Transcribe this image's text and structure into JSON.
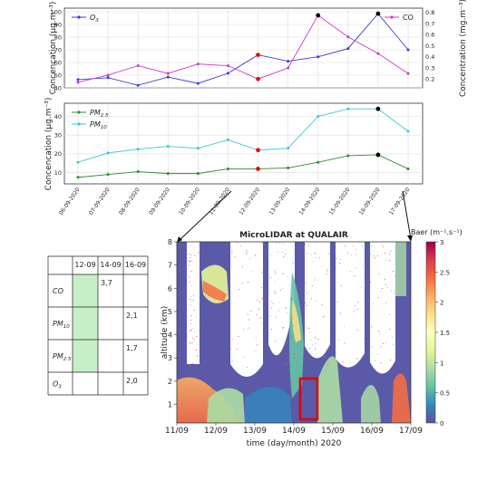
{
  "chart_data": [
    {
      "type": "line",
      "categories": [
        "06-09-2020",
        "07-09-2020",
        "08-09-2020",
        "09-09-2020",
        "10-09-2020",
        "11-09-2020",
        "12-09-2020",
        "13-09-2020",
        "14-09-2020",
        "15-09-2020",
        "16-09-2020",
        "17-09-2020"
      ],
      "series": [
        {
          "name": "O3",
          "axis": "left",
          "color": "#3a3adf",
          "values": [
            46.5,
            48.0,
            42.0,
            48.5,
            43.5,
            51.5,
            66.0,
            61.0,
            64.5,
            71.0,
            98.5,
            70.0
          ]
        },
        {
          "name": "CO",
          "axis": "right",
          "color": "#c83cc8",
          "values": [
            0.17,
            0.235,
            0.32,
            0.25,
            0.335,
            0.32,
            0.2,
            0.3,
            0.775,
            0.58,
            0.43,
            0.25
          ]
        }
      ],
      "highlight": {
        "red": [
          6
        ],
        "black": [
          8,
          10
        ]
      },
      "ylabel": "Concencation (µg.m⁻³)",
      "y2label": "Concentration (mg.m⁻³)",
      "ylim": [
        40,
        100
      ],
      "yticks": [
        40,
        50,
        60,
        70,
        80,
        90,
        100
      ],
      "y2lim": [
        0.12,
        0.84
      ],
      "y2ticks": [
        0.2,
        0.3,
        0.4,
        0.5,
        0.6,
        0.7,
        0.8
      ],
      "grid": true,
      "legend": [
        {
          "name": "O3",
          "position": "top-left"
        },
        {
          "name": "CO",
          "position": "top-right"
        }
      ]
    },
    {
      "type": "line",
      "categories": [
        "06-09-2020",
        "07-09-2020",
        "08-09-2020",
        "09-09-2020",
        "10-09-2020",
        "11-09-2020",
        "12-09-2020",
        "13-09-2020",
        "14-09-2020",
        "15-09-2020",
        "16-09-2020",
        "17-09-2020"
      ],
      "series": [
        {
          "name": "PM2.5",
          "color": "#2e8b2e",
          "values": [
            7.5,
            9.0,
            10.5,
            9.5,
            9.5,
            12.0,
            12.0,
            12.5,
            15.5,
            19.0,
            19.5,
            12.0
          ]
        },
        {
          "name": "PM10",
          "color": "#3cc8d2",
          "values": [
            15.5,
            20.5,
            22.5,
            24.0,
            23.0,
            27.5,
            22.0,
            23.0,
            40.0,
            44.0,
            44.0,
            32.0
          ]
        }
      ],
      "highlight": {
        "red": [
          6
        ],
        "black": [
          10
        ]
      },
      "ylabel": "Concencation (µg.m⁻³)",
      "ylim": [
        4,
        47
      ],
      "yticks": [
        10,
        20,
        30,
        40
      ],
      "grid": true,
      "legend": [
        {
          "name": "PM2.5",
          "position": "top-left"
        },
        {
          "name": "PM10",
          "position": "top-left"
        }
      ]
    },
    {
      "type": "heatmap",
      "title": "MicroLIDAR at QUALAIR",
      "xlabel": "time (day/month) 2020",
      "ylabel": "altitude (km)",
      "colorbar_label": "Baer (m⁻¹.s⁻¹)",
      "xticks": [
        "11/09",
        "12/09",
        "13/09",
        "14/09",
        "15/09",
        "16/09",
        "17/09"
      ],
      "yticks": [
        1,
        2,
        3,
        4,
        5,
        6,
        7,
        8
      ],
      "ylim": [
        0.2,
        8
      ],
      "colorbar_ticks": [
        0,
        0.5,
        1,
        1.5,
        2,
        2.5,
        3
      ],
      "colorbar_lim": [
        0,
        3
      ],
      "colormap": "Spectral_r",
      "highlight_box": {
        "x_day_range": [
          "14/09 ~06h",
          "14/09 ~18h"
        ],
        "altitude_km": [
          0.2,
          1.7
        ],
        "color": "#e00000"
      }
    },
    {
      "type": "table",
      "columns": [
        "",
        "12-09",
        "14-09",
        "16-09"
      ],
      "rows": [
        {
          "label": "CO",
          "values": [
            "",
            "3,7",
            ""
          ]
        },
        {
          "label": "PM10",
          "values": [
            "",
            "",
            "2,1"
          ]
        },
        {
          "label": "PM2.5",
          "values": [
            "",
            "",
            "1,7"
          ]
        },
        {
          "label": "O3",
          "values": [
            "",
            "",
            "2,0"
          ]
        }
      ],
      "highlight_color": "#c6efc6",
      "highlighted_cells": [
        [
          0,
          0
        ],
        [
          1,
          0
        ],
        [
          2,
          0
        ]
      ]
    }
  ]
}
